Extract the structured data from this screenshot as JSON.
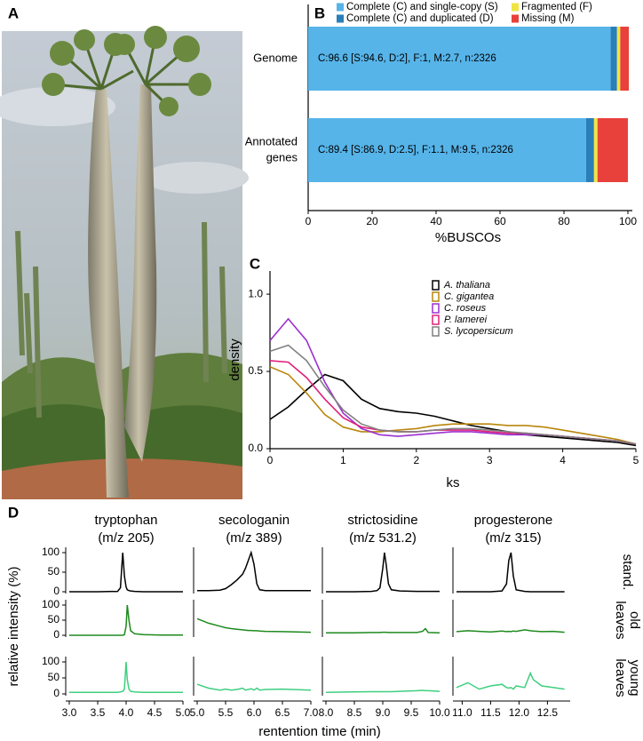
{
  "figure": {
    "panel_labels": [
      "A",
      "B",
      "C",
      "D"
    ]
  },
  "chart_data": [
    {
      "type": "stacked-barh",
      "categories": [
        [
          "Genome"
        ],
        [
          "Annotated",
          "genes"
        ]
      ],
      "value_labels": [
        "C:96.6 [S:94.6, D:2], F:1, M:2.7, n:2326",
        "C:89.4 [S:86.9, D:2.5], F:1.1, M:9.5, n:2326"
      ],
      "series": [
        {
          "name": "Complete (C) and single-copy (S)",
          "color": "#56b4e9",
          "values": [
            94.6,
            86.9
          ]
        },
        {
          "name": "Complete (C) and duplicated (D)",
          "color": "#2b7fb8",
          "values": [
            2,
            2.5
          ]
        },
        {
          "name": "Fragmented (F)",
          "color": "#f0e442",
          "values": [
            1,
            1.1
          ]
        },
        {
          "name": "Missing (M)",
          "color": "#e8413c",
          "values": [
            2.7,
            9.5
          ]
        }
      ],
      "xlim": [
        0,
        100
      ],
      "xticks": [
        0,
        20,
        40,
        60,
        80,
        100
      ],
      "xlabel": "%BUSCOs"
    },
    {
      "type": "line",
      "xlabel": "ks",
      "ylabel": "density",
      "x": [
        0,
        0.25,
        0.5,
        0.75,
        1,
        1.25,
        1.5,
        1.75,
        2,
        2.25,
        2.5,
        2.75,
        3,
        3.25,
        3.5,
        3.75,
        4,
        4.25,
        4.5,
        4.75,
        5
      ],
      "series": [
        {
          "name": "A. thaliana",
          "color": "#000000",
          "values": [
            0.19,
            0.27,
            0.38,
            0.48,
            0.44,
            0.32,
            0.26,
            0.24,
            0.23,
            0.21,
            0.18,
            0.15,
            0.13,
            0.11,
            0.09,
            0.08,
            0.07,
            0.06,
            0.05,
            0.04,
            0.02
          ]
        },
        {
          "name": "C. gigantea",
          "color": "#b8860b",
          "values": [
            0.53,
            0.48,
            0.36,
            0.22,
            0.14,
            0.11,
            0.11,
            0.12,
            0.13,
            0.15,
            0.16,
            0.16,
            0.16,
            0.15,
            0.15,
            0.14,
            0.12,
            0.1,
            0.08,
            0.06,
            0.03
          ]
        },
        {
          "name": "C. roseus",
          "color": "#9b30d0",
          "values": [
            0.7,
            0.84,
            0.7,
            0.43,
            0.23,
            0.13,
            0.09,
            0.08,
            0.09,
            0.1,
            0.11,
            0.11,
            0.1,
            0.09,
            0.09,
            0.09,
            0.08,
            0.07,
            0.06,
            0.05,
            0.03
          ]
        },
        {
          "name": "P. lamerei",
          "color": "#e0207a",
          "values": [
            0.57,
            0.56,
            0.46,
            0.32,
            0.2,
            0.14,
            0.12,
            0.11,
            0.11,
            0.12,
            0.12,
            0.12,
            0.11,
            0.1,
            0.1,
            0.09,
            0.08,
            0.07,
            0.06,
            0.05,
            0.03
          ]
        },
        {
          "name": "S. lycopersicum",
          "color": "#808080",
          "values": [
            0.63,
            0.67,
            0.57,
            0.4,
            0.25,
            0.16,
            0.12,
            0.11,
            0.11,
            0.12,
            0.13,
            0.13,
            0.12,
            0.11,
            0.1,
            0.09,
            0.08,
            0.07,
            0.06,
            0.05,
            0.03
          ]
        }
      ],
      "xlim": [
        0,
        5
      ],
      "xticks": [
        0,
        1,
        2,
        3,
        4,
        5
      ],
      "ylim": [
        0,
        1.15
      ],
      "yticks": [
        {
          "value": 0,
          "label": "0.0"
        },
        {
          "value": 0.5,
          "label": "0.5"
        },
        {
          "value": 1,
          "label": "1.0"
        }
      ]
    },
    {
      "type": "chromatogram",
      "ylabel": "relative intensity (%)",
      "xlabel": "rentention time (min)",
      "row_labels": [
        [
          "stand."
        ],
        [
          "old",
          "leaves"
        ],
        [
          "young",
          "leaves"
        ]
      ],
      "ylim": [
        0,
        100
      ],
      "yticks": [
        0,
        50,
        100
      ],
      "columns": [
        {
          "title": "tryptophan",
          "subtitle": "(m/z 205)",
          "xlim": [
            3,
            5
          ],
          "xticks": [
            {
              "value": 3,
              "label": "3.0"
            },
            3.5,
            {
              "value": 4,
              "label": "4.0"
            },
            4.5,
            {
              "value": 5,
              "label": "5.0"
            }
          ],
          "x": [
            3.0,
            3.5,
            3.85,
            3.9,
            3.94,
            3.97,
            4.0,
            4.02,
            4.05,
            4.08,
            4.15,
            4.3,
            4.6,
            5.0
          ],
          "series": [
            {
              "color": "#000000",
              "values": [
                0,
                0,
                1,
                10,
                100,
                40,
                12,
                5,
                3,
                2,
                1,
                0,
                0,
                0
              ]
            },
            {
              "color": "#1e8a1e",
              "values": [
                0,
                0,
                0,
                0,
                0,
                2,
                30,
                100,
                50,
                15,
                5,
                2,
                1,
                1
              ]
            },
            {
              "color": "#3fcf7f",
              "values": [
                5,
                5,
                5,
                6,
                8,
                15,
                100,
                45,
                15,
                8,
                6,
                5,
                5,
                5
              ]
            }
          ]
        },
        {
          "title": "secologanin",
          "subtitle": "(m/z 389)",
          "xlim": [
            5,
            7
          ],
          "xticks": [
            {
              "value": 5,
              "label": "5.0"
            },
            5.5,
            {
              "value": 6,
              "label": "6.0"
            },
            6.5,
            {
              "value": 7,
              "label": "7.0"
            }
          ],
          "x": [
            5.0,
            5.2,
            5.4,
            5.5,
            5.6,
            5.7,
            5.8,
            5.85,
            5.9,
            5.95,
            6.0,
            6.05,
            6.1,
            6.2,
            6.5,
            7.0
          ],
          "series": [
            {
              "color": "#000000",
              "values": [
                3,
                3,
                4,
                8,
                18,
                30,
                45,
                60,
                80,
                100,
                70,
                20,
                5,
                3,
                3,
                3
              ]
            },
            {
              "color": "#1e8a1e",
              "values": [
                55,
                40,
                30,
                25,
                22,
                20,
                18,
                17,
                16,
                16,
                15,
                15,
                14,
                13,
                12,
                10
              ]
            },
            {
              "color": "#3fcf7f",
              "values": [
                30,
                18,
                12,
                15,
                12,
                14,
                18,
                12,
                14,
                16,
                12,
                18,
                12,
                14,
                15,
                12
              ]
            }
          ]
        },
        {
          "title": "strictosidine",
          "subtitle": "(m/z 531.2)",
          "xlim": [
            8,
            10
          ],
          "xticks": [
            {
              "value": 8,
              "label": "8.0"
            },
            8.5,
            {
              "value": 9,
              "label": "9.0"
            },
            9.5,
            {
              "value": 10,
              "label": "10.0"
            }
          ],
          "x": [
            8.0,
            8.5,
            8.8,
            8.9,
            8.95,
            9.0,
            9.03,
            9.06,
            9.1,
            9.15,
            9.3,
            9.6,
            9.7,
            9.75,
            9.8,
            10.0
          ],
          "series": [
            {
              "color": "#000000",
              "values": [
                0,
                0,
                1,
                3,
                10,
                60,
                100,
                70,
                20,
                5,
                2,
                1,
                1,
                1,
                1,
                1
              ]
            },
            {
              "color": "#1e8a1e",
              "values": [
                8,
                8,
                9,
                9,
                9,
                10,
                10,
                10,
                9,
                9,
                9,
                9,
                13,
                22,
                9,
                8
              ]
            },
            {
              "color": "#3fcf7f",
              "values": [
                5,
                6,
                7,
                7,
                7,
                7,
                7,
                7,
                7,
                7,
                8,
                10,
                11,
                10,
                10,
                8
              ]
            }
          ]
        },
        {
          "title": "progesterone",
          "subtitle": "(m/z 315)",
          "xlim": [
            10.9,
            12.9
          ],
          "xticks": [
            {
              "value": 11,
              "label": "11.0"
            },
            11.5,
            {
              "value": 12,
              "label": "12.0"
            },
            12.5
          ],
          "x": [
            10.9,
            11.1,
            11.3,
            11.5,
            11.7,
            11.78,
            11.82,
            11.86,
            11.9,
            11.95,
            12.1,
            12.2,
            12.25,
            12.4,
            12.6,
            12.8
          ],
          "series": [
            {
              "color": "#000000",
              "values": [
                0,
                0,
                0,
                0,
                2,
                20,
                80,
                100,
                40,
                5,
                1,
                0,
                0,
                0,
                0,
                0
              ]
            },
            {
              "color": "#1e8a1e",
              "values": [
                12,
                15,
                13,
                11,
                14,
                12,
                13,
                12,
                14,
                13,
                18,
                15,
                14,
                12,
                13,
                10
              ]
            },
            {
              "color": "#3fcf7f",
              "values": [
                20,
                35,
                15,
                25,
                30,
                20,
                18,
                20,
                15,
                25,
                20,
                65,
                45,
                25,
                20,
                15
              ]
            }
          ]
        }
      ]
    }
  ]
}
